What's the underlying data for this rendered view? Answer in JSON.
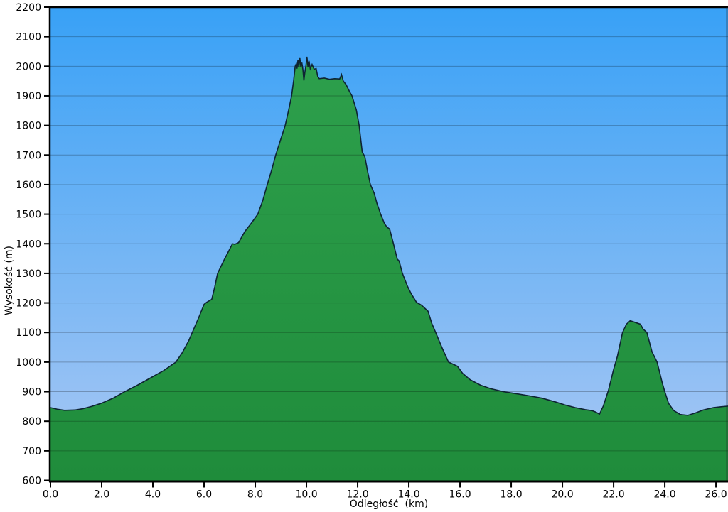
{
  "chart_data": {
    "type": "area",
    "title": "",
    "x_axis": {
      "title": "Odległość  (km)",
      "lim": [
        0,
        26.47
      ],
      "ticks": [
        {
          "value": 0,
          "label": "0.0"
        },
        {
          "value": 2,
          "label": "2.0"
        },
        {
          "value": 4,
          "label": "4.0"
        },
        {
          "value": 6,
          "label": "6.0"
        },
        {
          "value": 8,
          "label": "8.0"
        },
        {
          "value": 10,
          "label": "10.0"
        },
        {
          "value": 12,
          "label": "12.0"
        },
        {
          "value": 14,
          "label": "14.0"
        },
        {
          "value": 16,
          "label": "16.0"
        },
        {
          "value": 18,
          "label": "18.0"
        },
        {
          "value": 20,
          "label": "20.0"
        },
        {
          "value": 22,
          "label": "22.0"
        },
        {
          "value": 24,
          "label": "24.0"
        },
        {
          "value": 26,
          "label": "26.0"
        }
      ]
    },
    "y_axis": {
      "title": "Wysokość (m)",
      "lim": [
        600,
        2200
      ],
      "ticks": [
        {
          "value": 600,
          "label": "600"
        },
        {
          "value": 700,
          "label": "700"
        },
        {
          "value": 800,
          "label": "800"
        },
        {
          "value": 900,
          "label": "900"
        },
        {
          "value": 1000,
          "label": "1000"
        },
        {
          "value": 1100,
          "label": "1100"
        },
        {
          "value": 1200,
          "label": "1200"
        },
        {
          "value": 1300,
          "label": "1300"
        },
        {
          "value": 1400,
          "label": "1400"
        },
        {
          "value": 1500,
          "label": "1500"
        },
        {
          "value": 1600,
          "label": "1600"
        },
        {
          "value": 1700,
          "label": "1700"
        },
        {
          "value": 1800,
          "label": "1800"
        },
        {
          "value": 1900,
          "label": "1900"
        },
        {
          "value": 2000,
          "label": "2000"
        },
        {
          "value": 2100,
          "label": "2100"
        },
        {
          "value": 2200,
          "label": "2200"
        }
      ]
    },
    "grid": "horizontal",
    "legend": "none",
    "series": [
      {
        "name": "elevation-profile",
        "points": [
          [
            0.0,
            846
          ],
          [
            0.25,
            841
          ],
          [
            0.55,
            837
          ],
          [
            0.95,
            838
          ],
          [
            1.25,
            842
          ],
          [
            1.6,
            850
          ],
          [
            2.0,
            861
          ],
          [
            2.45,
            878
          ],
          [
            2.9,
            900
          ],
          [
            3.4,
            922
          ],
          [
            3.9,
            946
          ],
          [
            4.4,
            970
          ],
          [
            4.9,
            1000
          ],
          [
            5.15,
            1032
          ],
          [
            5.4,
            1072
          ],
          [
            5.6,
            1112
          ],
          [
            5.8,
            1152
          ],
          [
            6.0,
            1195
          ],
          [
            6.1,
            1202
          ],
          [
            6.3,
            1212
          ],
          [
            6.42,
            1255
          ],
          [
            6.53,
            1300
          ],
          [
            6.8,
            1348
          ],
          [
            7.11,
            1400
          ],
          [
            7.2,
            1398
          ],
          [
            7.35,
            1404
          ],
          [
            7.6,
            1442
          ],
          [
            7.85,
            1470
          ],
          [
            8.1,
            1500
          ],
          [
            8.3,
            1548
          ],
          [
            8.47,
            1600
          ],
          [
            8.65,
            1652
          ],
          [
            8.8,
            1700
          ],
          [
            9.0,
            1754
          ],
          [
            9.17,
            1800
          ],
          [
            9.3,
            1850
          ],
          [
            9.42,
            1900
          ],
          [
            9.5,
            1952
          ],
          [
            9.56,
            2000
          ],
          [
            9.6,
            2008
          ],
          [
            9.63,
            1992
          ],
          [
            9.67,
            2022
          ],
          [
            9.7,
            1996
          ],
          [
            9.74,
            2030
          ],
          [
            9.78,
            1998
          ],
          [
            9.82,
            2012
          ],
          [
            9.86,
            1990
          ],
          [
            9.9,
            1952
          ],
          [
            9.94,
            1980
          ],
          [
            9.98,
            2002
          ],
          [
            10.02,
            2032
          ],
          [
            10.06,
            1998
          ],
          [
            10.1,
            2018
          ],
          [
            10.15,
            1992
          ],
          [
            10.22,
            2006
          ],
          [
            10.3,
            1990
          ],
          [
            10.38,
            1992
          ],
          [
            10.44,
            1966
          ],
          [
            10.5,
            1958
          ],
          [
            10.7,
            1960
          ],
          [
            10.9,
            1956
          ],
          [
            11.1,
            1958
          ],
          [
            11.3,
            1957
          ],
          [
            11.37,
            1972
          ],
          [
            11.44,
            1950
          ],
          [
            11.55,
            1938
          ],
          [
            11.68,
            1915
          ],
          [
            11.78,
            1900
          ],
          [
            11.95,
            1852
          ],
          [
            12.06,
            1800
          ],
          [
            12.18,
            1710
          ],
          [
            12.28,
            1695
          ],
          [
            12.4,
            1640
          ],
          [
            12.5,
            1600
          ],
          [
            12.55,
            1590
          ],
          [
            12.65,
            1570
          ],
          [
            12.75,
            1538
          ],
          [
            12.9,
            1500
          ],
          [
            13.05,
            1468
          ],
          [
            13.15,
            1456
          ],
          [
            13.25,
            1450
          ],
          [
            13.4,
            1400
          ],
          [
            13.55,
            1348
          ],
          [
            13.62,
            1342
          ],
          [
            13.75,
            1300
          ],
          [
            13.95,
            1256
          ],
          [
            14.1,
            1230
          ],
          [
            14.3,
            1202
          ],
          [
            14.5,
            1192
          ],
          [
            14.75,
            1172
          ],
          [
            14.9,
            1130
          ],
          [
            15.05,
            1100
          ],
          [
            15.3,
            1048
          ],
          [
            15.55,
            1000
          ],
          [
            15.7,
            994
          ],
          [
            15.9,
            986
          ],
          [
            16.1,
            962
          ],
          [
            16.4,
            940
          ],
          [
            16.8,
            922
          ],
          [
            17.2,
            910
          ],
          [
            17.7,
            900
          ],
          [
            18.2,
            893
          ],
          [
            18.7,
            886
          ],
          [
            19.2,
            878
          ],
          [
            19.7,
            866
          ],
          [
            20.1,
            855
          ],
          [
            20.5,
            846
          ],
          [
            20.9,
            839
          ],
          [
            21.15,
            836
          ],
          [
            21.3,
            831
          ],
          [
            21.45,
            824
          ],
          [
            21.6,
            852
          ],
          [
            21.8,
            905
          ],
          [
            22.0,
            975
          ],
          [
            22.15,
            1020
          ],
          [
            22.35,
            1100
          ],
          [
            22.5,
            1128
          ],
          [
            22.65,
            1140
          ],
          [
            22.85,
            1134
          ],
          [
            23.05,
            1128
          ],
          [
            23.15,
            1112
          ],
          [
            23.3,
            1100
          ],
          [
            23.5,
            1035
          ],
          [
            23.7,
            1000
          ],
          [
            23.9,
            930
          ],
          [
            24.0,
            900
          ],
          [
            24.15,
            860
          ],
          [
            24.35,
            836
          ],
          [
            24.6,
            823
          ],
          [
            24.9,
            820
          ],
          [
            25.2,
            828
          ],
          [
            25.5,
            838
          ],
          [
            25.9,
            846
          ],
          [
            26.2,
            849
          ],
          [
            26.47,
            851
          ]
        ]
      }
    ],
    "colors": {
      "sky_top": "#38a1f6",
      "sky_bottom": "#abc8f3",
      "terrain_top": "#2fa24e",
      "terrain_bottom": "#1f8c3b",
      "outline": "#0e2433",
      "grid": "rgba(0,0,0,0.25)",
      "axis": "#000000",
      "top_border": "#000000",
      "right_border": "#222222",
      "background": "#ffffff"
    }
  }
}
